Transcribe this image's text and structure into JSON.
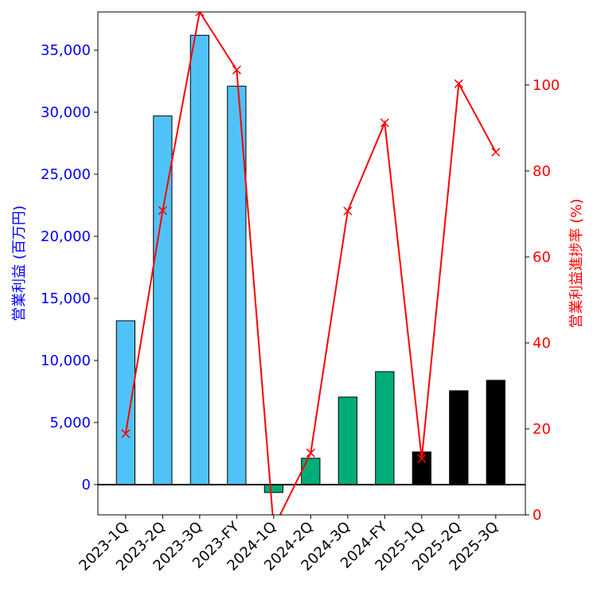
{
  "chart_data": {
    "type": "bar+line",
    "categories": [
      "2023-1Q",
      "2023-2Q",
      "2023-3Q",
      "2023-FY",
      "2024-1Q",
      "2024-2Q",
      "2024-3Q",
      "2024-FY",
      "2025-1Q",
      "2025-2Q",
      "2025-3Q"
    ],
    "bar_series": {
      "name": "営業利益",
      "values": [
        13200,
        29700,
        36200,
        32100,
        -640,
        2120,
        7050,
        9100,
        2630,
        7560,
        8400
      ],
      "colors": [
        "#4fc3f7",
        "#4fc3f7",
        "#4fc3f7",
        "#4fc3f7",
        "#00ac78",
        "#00ac78",
        "#00ac78",
        "#00ac78",
        "#000000",
        "#000000",
        "#000000"
      ]
    },
    "line_series": {
      "name": "営業利益進捗率",
      "values": [
        18.9,
        70.8,
        117,
        103.5,
        -3,
        14.4,
        70.7,
        91.2,
        13.1,
        100.3,
        84.4
      ],
      "color": "#ff0000",
      "marker": "x"
    },
    "ylabel_left": "営業利益 (百万円)",
    "ylabel_right": "営業利益進捗率 (%)",
    "ylim_left": [
      -2440,
      38080
    ],
    "ylim_right": [
      0,
      117
    ],
    "yticks_left": [
      0,
      5000,
      10000,
      15000,
      20000,
      25000,
      30000,
      35000
    ],
    "yticklabels_left": [
      "0",
      "5,000",
      "10,000",
      "15,000",
      "20,000",
      "25,000",
      "30,000",
      "35,000"
    ],
    "yticks_right": [
      0,
      20,
      40,
      60,
      80,
      100
    ],
    "yticklabels_right": [
      "0",
      "20",
      "40",
      "60",
      "80",
      "100"
    ],
    "left_axis_color": "#0000ff",
    "right_axis_color": "#ff0000",
    "grid": false
  }
}
